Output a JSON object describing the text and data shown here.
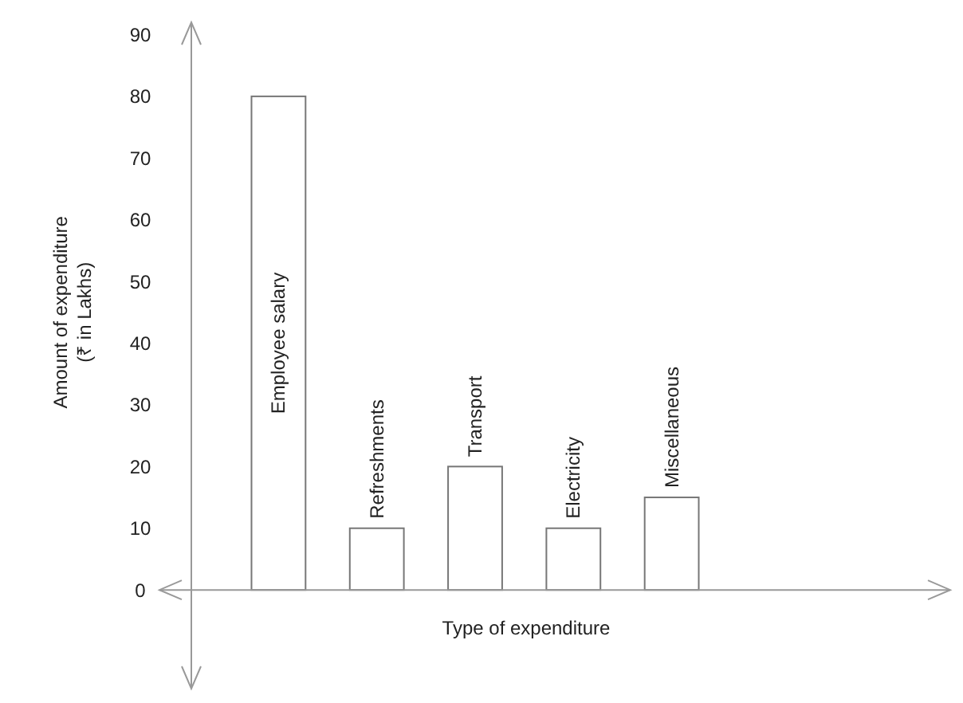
{
  "chart_data": {
    "type": "bar",
    "xlabel": "Type of expenditure",
    "ylabel": "Amount of expenditure\n(₹ in Lakhs)",
    "categories": [
      "Employee salary",
      "Refreshments",
      "Transport",
      "Electricity",
      "Miscellaneous"
    ],
    "values": [
      80,
      10,
      20,
      10,
      15
    ],
    "color": "#ffffff",
    "ylim": [
      -16,
      92
    ],
    "yticks": [
      0,
      10,
      20,
      30,
      40,
      50,
      60,
      70,
      80,
      90
    ]
  }
}
